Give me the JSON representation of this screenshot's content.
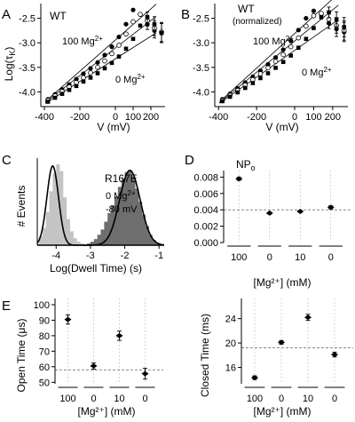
{
  "panels": {
    "A": {
      "letter": "A",
      "title": "WT",
      "xlabel": "V (mV)",
      "ylabel_main": "Log(τ",
      "ylabel_sub": "K",
      "ylabel_end": ")",
      "ann_high": "100 Mg",
      "ann_low": "0 Mg",
      "ann_sup": "2+",
      "xticks": [
        "-400",
        "-200",
        "0",
        "100",
        "200"
      ],
      "yticks": [
        "-2.5",
        "-3.0",
        "-3.5",
        "-4.0"
      ]
    },
    "B": {
      "letter": "B",
      "title": "WT",
      "subtitle": "(normalized)",
      "xlabel": "V (mV)",
      "ann_high": "100 Mg",
      "ann_low": "0 Mg",
      "ann_sup": "2+",
      "xticks": [
        "-400",
        "-200",
        "0",
        "100",
        "200"
      ],
      "yticks": [
        "-2.5",
        "-3.0",
        "-3.5",
        "-4.0"
      ]
    },
    "C": {
      "letter": "C",
      "title": "R167E",
      "cond_mg": "0 Mg",
      "cond_sup": "2+",
      "cond_v": "-80 mV",
      "xlabel": "Log(Dwell Time) (s)",
      "ylabel": "# Events",
      "xticks": [
        "-4",
        "-3",
        "-2",
        "-1"
      ]
    },
    "D": {
      "letter": "D",
      "ylabel_main": "NP",
      "ylabel_sub": "o",
      "xlabel": "[Mg²⁺] (mM)",
      "yticks": [
        "0.008",
        "0.006",
        "0.004",
        "0.002",
        "0.000"
      ]
    },
    "E": {
      "letter": "E",
      "left_ylabel": "Open Time (μs)",
      "right_ylabel": "Closed Time (ms)",
      "xlabel": "[Mg²⁺] (mM)",
      "left_yticks": [
        "100",
        "90",
        "80",
        "70",
        "60",
        "50"
      ],
      "right_yticks": [
        "24",
        "20",
        "16"
      ]
    }
  },
  "chart_data": [
    {
      "panel": "A",
      "type": "scatter",
      "title": "WT",
      "xlabel": "V (mV)",
      "ylabel": "Log(τK)",
      "xlim": [
        -420,
        280
      ],
      "ylim": [
        -4.3,
        -2.2
      ],
      "series": [
        {
          "name": "100 Mg2+",
          "marker": "filled-circle",
          "x": [
            -380,
            -340,
            -300,
            -260,
            -220,
            -180,
            -140,
            -100,
            -60,
            -20,
            20,
            60,
            100,
            140,
            180,
            220,
            260
          ],
          "y": [
            -4.15,
            -4.05,
            -3.95,
            -3.85,
            -3.74,
            -3.63,
            -3.52,
            -3.4,
            -3.25,
            -3.08,
            -2.88,
            -2.62,
            -2.33,
            -2.42,
            -2.62,
            -2.75,
            -2.8
          ]
        },
        {
          "name": "",
          "marker": "open-circle",
          "x": [
            -380,
            -340,
            -300,
            -260,
            -220,
            -180,
            -140,
            -100,
            -60,
            -20,
            20,
            60,
            100,
            140,
            180,
            220,
            260
          ],
          "y": [
            -4.17,
            -4.08,
            -3.99,
            -3.9,
            -3.81,
            -3.71,
            -3.61,
            -3.5,
            -3.37,
            -3.22,
            -3.05,
            -2.82,
            -2.57,
            -2.42,
            -2.55,
            -2.7,
            -2.78
          ]
        },
        {
          "name": "0 Mg2+",
          "marker": "filled-square",
          "x": [
            -380,
            -340,
            -300,
            -260,
            -220,
            -180,
            -140,
            -100,
            -60,
            -20,
            20,
            60,
            100,
            140,
            180,
            220,
            260
          ],
          "y": [
            -4.2,
            -4.12,
            -4.04,
            -3.96,
            -3.88,
            -3.79,
            -3.71,
            -3.62,
            -3.52,
            -3.41,
            -3.28,
            -3.12,
            -2.92,
            -2.65,
            -2.48,
            -2.62,
            -2.8
          ]
        }
      ]
    },
    {
      "panel": "B",
      "type": "scatter",
      "title": "WT",
      "subtitle": "(normalized)",
      "xlabel": "V (mV)",
      "xlim": [
        -420,
        280
      ],
      "ylim": [
        -4.3,
        -2.2
      ],
      "series": [
        {
          "name": "100 Mg2+",
          "marker": "filled-circle",
          "x": [
            -380,
            -340,
            -300,
            -260,
            -220,
            -180,
            -140,
            -100,
            -60,
            -20,
            20,
            60,
            100,
            140,
            180,
            220,
            260
          ],
          "y": [
            -4.15,
            -4.04,
            -3.93,
            -3.81,
            -3.69,
            -3.57,
            -3.44,
            -3.3,
            -3.14,
            -2.96,
            -2.74,
            -2.5,
            -2.35,
            -2.42,
            -2.6,
            -2.72,
            -2.78
          ]
        },
        {
          "name": "",
          "marker": "open-circle",
          "x": [
            -380,
            -340,
            -300,
            -260,
            -220,
            -180,
            -140,
            -100,
            -60,
            -20,
            20,
            60,
            100,
            140,
            180,
            220,
            260
          ],
          "y": [
            -4.17,
            -4.07,
            -3.97,
            -3.86,
            -3.75,
            -3.63,
            -3.51,
            -3.38,
            -3.24,
            -3.08,
            -2.9,
            -2.66,
            -2.45,
            -2.4,
            -2.52,
            -2.65,
            -2.75
          ]
        },
        {
          "name": "0 Mg2+",
          "marker": "filled-square",
          "x": [
            -380,
            -340,
            -300,
            -260,
            -220,
            -180,
            -140,
            -100,
            -60,
            -20,
            20,
            60,
            100,
            140,
            180,
            220,
            260
          ],
          "y": [
            -4.19,
            -4.1,
            -4.01,
            -3.92,
            -3.82,
            -3.72,
            -3.62,
            -3.51,
            -3.39,
            -3.26,
            -3.1,
            -2.92,
            -2.7,
            -2.48,
            -2.38,
            -2.52,
            -2.68
          ]
        }
      ]
    },
    {
      "panel": "C",
      "type": "bar",
      "title": "R167E",
      "xlabel": "Log(Dwell Time) (s)",
      "ylabel": "# Events",
      "xlim": [
        -4.55,
        -0.85
      ],
      "ylim": [
        0,
        1
      ],
      "bin_width": 0.1,
      "bins_left": [
        -4.6,
        -4.5,
        -4.4,
        -4.3,
        -4.2,
        -4.1,
        -4.0,
        -3.9,
        -3.8,
        -3.7,
        -3.6,
        -3.5,
        -3.4,
        -3.3,
        -3.2,
        -3.1,
        -3.0,
        -2.9,
        -2.8,
        -2.7,
        -2.6,
        -2.5,
        -2.4,
        -2.3,
        -2.2,
        -2.1,
        -2.0,
        -1.9,
        -1.8,
        -1.7,
        -1.6,
        -1.5,
        -1.4,
        -1.3,
        -1.2,
        -1.1,
        -1.0
      ],
      "series": [
        {
          "name": "",
          "color": "#c4c4c4",
          "values": [
            0.02,
            0.1,
            0.2,
            0.38,
            0.62,
            0.82,
            0.93,
            0.85,
            0.55,
            0.3,
            0.16,
            0.08,
            0.04,
            0.02,
            0.01,
            0,
            0,
            0,
            0,
            0,
            0,
            0,
            0,
            0,
            0,
            0,
            0,
            0,
            0,
            0,
            0,
            0,
            0,
            0,
            0,
            0,
            0
          ]
        },
        {
          "name": "",
          "color": "#6e6e6e",
          "values": [
            0,
            0,
            0,
            0,
            0,
            0,
            0,
            0,
            0,
            0,
            0,
            0,
            0,
            0,
            0,
            0.02,
            0.04,
            0.07,
            0.12,
            0.18,
            0.27,
            0.37,
            0.46,
            0.56,
            0.67,
            0.76,
            0.84,
            0.86,
            0.79,
            0.65,
            0.5,
            0.35,
            0.22,
            0.12,
            0.06,
            0.03,
            0.01
          ]
        }
      ],
      "fit_curves": [
        {
          "mean": -4.1,
          "sd": 0.17,
          "amp": 0.91
        },
        {
          "mean": -1.85,
          "sd": 0.3,
          "amp": 0.86
        }
      ]
    },
    {
      "panel": "D",
      "type": "scatter",
      "ylabel": "NPo",
      "xlabel": "[Mg2+] (mM)",
      "categories": [
        "100",
        "0",
        "10",
        "0"
      ],
      "values": [
        0.0078,
        0.0036,
        0.0038,
        0.0043
      ],
      "errors": [
        0.0002,
        0.0001,
        0.0001,
        0.0002
      ],
      "ylim": [
        0,
        0.0088
      ],
      "reference_line": 0.004
    },
    {
      "panel": "E-left",
      "type": "scatter",
      "ylabel": "Open Time (μs)",
      "xlabel": "[Mg2+] (mM)",
      "categories": [
        "100",
        "0",
        "10",
        "0"
      ],
      "values": [
        90.5,
        60.5,
        80,
        55.5
      ],
      "errors": [
        3,
        2,
        3,
        3.5
      ],
      "ylim": [
        49,
        104
      ],
      "reference_line": 58
    },
    {
      "panel": "E-right",
      "type": "scatter",
      "ylabel": "Closed Time (ms)",
      "xlabel": "[Mg2+] (mM)",
      "categories": [
        "100",
        "0",
        "10",
        "0"
      ],
      "values": [
        14.3,
        20.1,
        24.2,
        18.1
      ],
      "errors": [
        0.3,
        0.3,
        0.5,
        0.4
      ],
      "ylim": [
        13.3,
        27.3
      ],
      "reference_line": 19.2
    }
  ]
}
